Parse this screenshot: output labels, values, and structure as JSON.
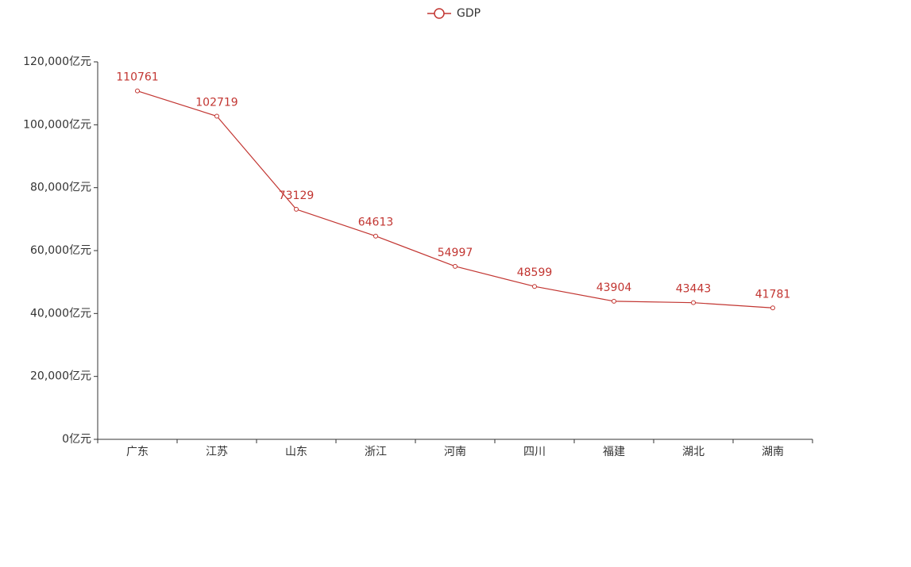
{
  "chart_data": {
    "type": "line",
    "categories": [
      "广东",
      "江苏",
      "山东",
      "浙江",
      "河南",
      "四川",
      "福建",
      "湖北",
      "湖南"
    ],
    "series": [
      {
        "name": "GDP",
        "color": "#c23531",
        "values": [
          110761,
          102719,
          73129,
          64613,
          54997,
          48599,
          43904,
          43443,
          41781
        ]
      }
    ],
    "ylim": [
      0,
      120000
    ],
    "yticks": [
      {
        "value": 0,
        "label": "0亿元"
      },
      {
        "value": 20000,
        "label": "20,000亿元"
      },
      {
        "value": 40000,
        "label": "40,000亿元"
      },
      {
        "value": 60000,
        "label": "60,000亿元"
      },
      {
        "value": 80000,
        "label": "80,000亿元"
      },
      {
        "value": 100000,
        "label": "100,000亿元"
      },
      {
        "value": 120000,
        "label": "120,000亿元"
      }
    ],
    "grid": false
  }
}
